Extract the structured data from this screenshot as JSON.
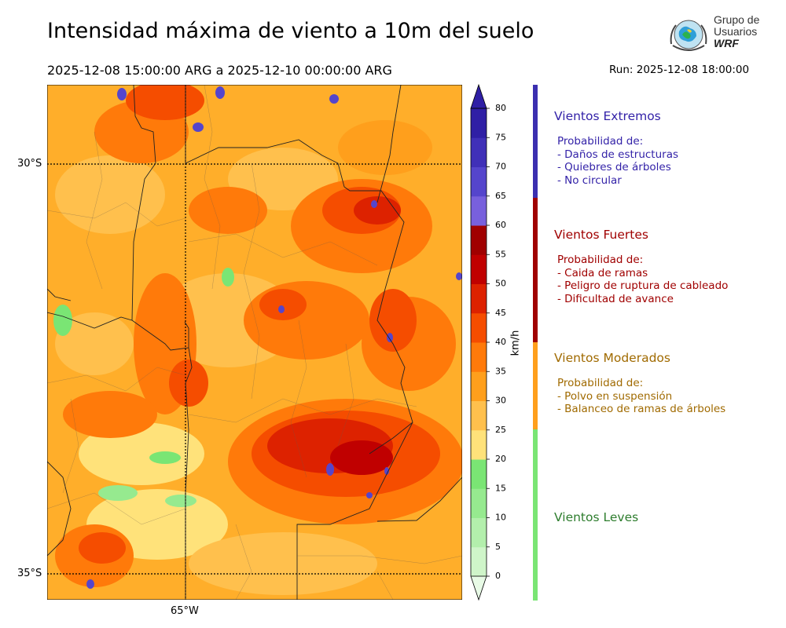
{
  "title": "Intensidad máxima de viento a 10m del suelo",
  "period": "2025-12-08 15:00:00 ARG  a  2025-12-10 00:00:00 ARG",
  "run": "Run: 2025-12-08 18:00:00",
  "logo": {
    "line1": "Grupo de",
    "line2": "Usuarios",
    "line3": "WRF"
  },
  "map": {
    "lat_labels": [
      "30°S",
      "35°S"
    ],
    "lon_labels": [
      "65°W"
    ]
  },
  "colorbar": {
    "unit": "km/h",
    "ticks": [
      "0",
      "5",
      "10",
      "15",
      "20",
      "25",
      "30",
      "35",
      "40",
      "45",
      "50",
      "55",
      "60",
      "65",
      "70",
      "75",
      "80"
    ],
    "colors": [
      "#e8fbe6",
      "#cff5c9",
      "#b3efac",
      "#96ea8f",
      "#7ae574",
      "#ffe27a",
      "#ffc04d",
      "#ff9f1c",
      "#ff7a0a",
      "#f54d00",
      "#dd2200",
      "#c00000",
      "#a00000",
      "#7860dd",
      "#5545cc",
      "#4030b8",
      "#2f1fa5"
    ]
  },
  "categories": [
    {
      "title": "Vientos Extremos",
      "color": "#3b2fb0",
      "title_color": "#3322a8",
      "lines": [
        "Probabilidad de:",
        "- Daños de estructuras",
        "- Quiebres de árboles",
        "- No circular"
      ]
    },
    {
      "title": "Vientos Fuertes",
      "color": "#a00000",
      "title_color": "#a00000",
      "lines": [
        "Probabilidad de:",
        "- Caida de ramas",
        "- Peligro de ruptura de cableado",
        "- Dificultad de avance"
      ]
    },
    {
      "title": "Vientos Moderados",
      "color": "#ff9f1c",
      "title_color": "#a06a00",
      "lines": [
        "Probabilidad de:",
        "- Polvo en suspensión",
        "- Balanceo de ramas de árboles"
      ]
    },
    {
      "title": "Vientos Leves",
      "color": "#7ae574",
      "title_color": "#2e7d2e",
      "lines": []
    }
  ]
}
